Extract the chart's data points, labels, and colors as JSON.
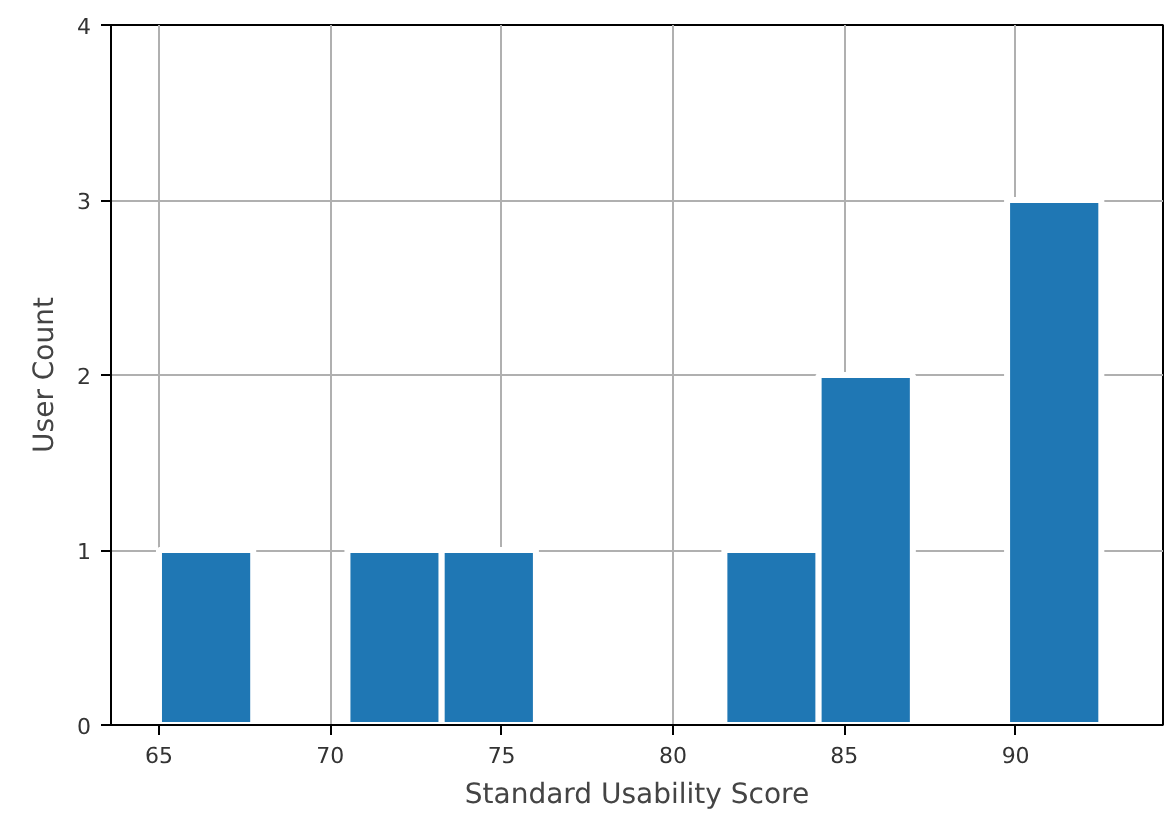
{
  "chart_data": {
    "type": "histogram",
    "xlabel": "Standard Usability Score",
    "ylabel": "User Count",
    "bins": [
      65,
      67.75,
      70.5,
      73.25,
      76,
      78.75,
      81.5,
      84.25,
      87,
      89.75,
      92.5
    ],
    "values": [
      1,
      0,
      1,
      1,
      0,
      0,
      1,
      2,
      0,
      3
    ],
    "color": "#1f77b4",
    "xlim": [
      63.6,
      94.3
    ],
    "ylim": [
      0,
      4
    ],
    "xticks": [
      65,
      70,
      75,
      80,
      85,
      90
    ],
    "yticks": [
      0,
      1,
      2,
      3,
      4
    ],
    "grid": true
  }
}
